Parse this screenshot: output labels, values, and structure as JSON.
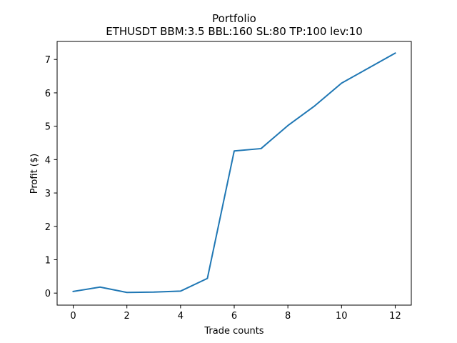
{
  "chart_data": {
    "type": "line",
    "title": "Portfolio",
    "subtitle": "ETHUSDT BBM:3.5 BBL:160 SL:80 TP:100 lev:10",
    "xlabel": "Trade counts",
    "ylabel": "Profit ($)",
    "xlim": [
      -0.6,
      12.6
    ],
    "ylim": [
      -0.36,
      7.54
    ],
    "xticks": [
      0,
      2,
      4,
      6,
      8,
      10,
      12
    ],
    "yticks": [
      0,
      1,
      2,
      3,
      4,
      5,
      6,
      7
    ],
    "grid": false,
    "series": [
      {
        "color": "#1f77b4",
        "x": [
          0,
          1,
          2,
          3,
          4,
          5,
          6,
          7,
          8,
          9,
          10,
          11,
          12
        ],
        "y": [
          0.05,
          0.18,
          0.02,
          0.03,
          0.06,
          0.44,
          4.26,
          4.33,
          5.02,
          5.61,
          6.29,
          6.74,
          7.19
        ]
      }
    ]
  }
}
